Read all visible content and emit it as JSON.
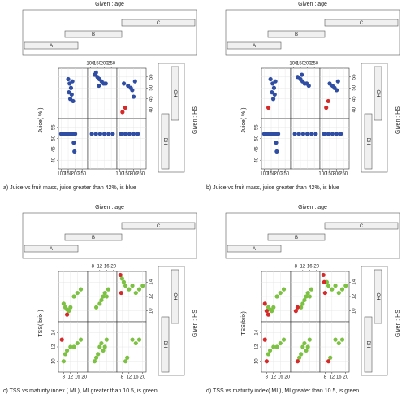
{
  "chart_data": [
    {
      "type": "coplot",
      "title": "a) Juice vs fruit mass, juice greater than 42%, is blue",
      "given_x": "Given : age",
      "given_y": "Given : HS",
      "x_levels": [
        "A",
        "B",
        "C"
      ],
      "y_levels": [
        "OH",
        "DH"
      ],
      "ylabel": "Juice( % )",
      "xlim": [
        80,
        290
      ],
      "ylim": [
        36,
        59
      ],
      "xticks": [
        100,
        150,
        200,
        250
      ],
      "yticks": [
        40,
        45,
        50,
        55
      ],
      "grid": true,
      "panels": [
        {
          "series": [
            {
              "color": "#2e4da3",
              "x": [
                150,
                160,
                170,
                155,
                175,
                165,
                180,
                185
              ],
              "values": [
                54,
                52,
                50,
                48,
                47,
                45,
                53,
                44
              ]
            }
          ]
        },
        {
          "series": [
            {
              "color": "#2e4da3",
              "x": [
                130,
                150,
                165,
                180,
                195,
                210,
                140,
                160
              ],
              "values": [
                56,
                55,
                54,
                53,
                52,
                52,
                57,
                51
              ]
            }
          ]
        },
        {
          "series": [
            {
              "color": "#2e4da3",
              "x": [
                130,
                160,
                180,
                190,
                200,
                210
              ],
              "values": [
                52,
                51,
                50,
                49,
                46,
                53
              ]
            },
            {
              "color": "#d62a2a",
              "x": [
                140,
                120
              ],
              "values": [
                41,
                39
              ]
            }
          ]
        },
        {
          "series": [
            {
              "color": "#2e4da3",
              "x": [
                100,
                120,
                140,
                160,
                180,
                200,
                190,
                195
              ],
              "values": [
                52,
                52,
                52,
                52,
                52,
                52,
                48,
                44
              ]
            }
          ]
        },
        {
          "series": [
            {
              "color": "#2e4da3",
              "x": [
                110,
                140,
                170,
                200,
                230,
                260
              ],
              "values": [
                52,
                52,
                52,
                52,
                52,
                52
              ]
            }
          ]
        },
        {
          "series": [
            {
              "color": "#2e4da3",
              "x": [
                110,
                140,
                170,
                200,
                230
              ],
              "values": [
                52,
                52,
                52,
                52,
                52
              ]
            }
          ]
        }
      ]
    },
    {
      "type": "coplot",
      "title": "b) Juice vs fruit mass, juice greater than 42%, is blue",
      "given_x": "Given : age",
      "given_y": "Given : HS",
      "x_levels": [
        "A",
        "B",
        "C"
      ],
      "y_levels": [
        "OH",
        "DH"
      ],
      "ylabel": "Juice( % )",
      "xlim": [
        80,
        290
      ],
      "ylim": [
        36,
        59
      ],
      "xticks": [
        100,
        150,
        200,
        250
      ],
      "yticks": [
        40,
        45,
        50,
        55
      ],
      "grid": true,
      "panels": [
        {
          "series": [
            {
              "color": "#2e4da3",
              "x": [
                145,
                160,
                170,
                155,
                175,
                165,
                180
              ],
              "values": [
                54,
                52,
                50,
                48,
                47,
                45,
                53
              ]
            },
            {
              "color": "#d62a2a",
              "x": [
                130
              ],
              "values": [
                41
              ]
            }
          ]
        },
        {
          "series": [
            {
              "color": "#2e4da3",
              "x": [
                130,
                150,
                165,
                180,
                195,
                210,
                160
              ],
              "values": [
                55,
                54,
                53,
                52,
                52,
                51,
                56
              ]
            }
          ]
        },
        {
          "series": [
            {
              "color": "#2e4da3",
              "x": [
                150,
                170,
                185,
                200,
                210
              ],
              "values": [
                52,
                51,
                50,
                49,
                53
              ]
            },
            {
              "color": "#d62a2a",
              "x": [
                140,
                125
              ],
              "values": [
                44,
                41
              ]
            }
          ]
        },
        {
          "series": [
            {
              "color": "#2e4da3",
              "x": [
                100,
                120,
                140,
                160,
                180,
                200,
                185,
                190
              ],
              "values": [
                52,
                52,
                52,
                52,
                52,
                52,
                48,
                44
              ]
            }
          ]
        },
        {
          "series": [
            {
              "color": "#2e4da3",
              "x": [
                110,
                140,
                170,
                200,
                230,
                260
              ],
              "values": [
                52,
                52,
                52,
                52,
                52,
                52
              ]
            }
          ]
        },
        {
          "series": [
            {
              "color": "#2e4da3",
              "x": [
                110,
                140,
                170,
                200,
                230
              ],
              "values": [
                52,
                52,
                52,
                52,
                52
              ]
            }
          ]
        }
      ]
    },
    {
      "type": "coplot",
      "title": "c) TSS vs maturity index ( MI ), MI greater than 10.5, is green",
      "given_x": "Given : age",
      "given_y": "Given : HS",
      "x_levels": [
        "A",
        "B",
        "C"
      ],
      "y_levels": [
        "OH",
        "DH"
      ],
      "ylabel": "TSS( brix )",
      "xlim": [
        5,
        22
      ],
      "ylim": [
        8.5,
        15.5
      ],
      "xticks": [
        8,
        12,
        16,
        20
      ],
      "yticks": [
        10,
        12,
        14
      ],
      "grid": true,
      "panels": [
        {
          "series": [
            {
              "color": "#7cc142",
              "x": [
                8,
                9,
                10,
                11,
                12,
                14,
                16,
                18
              ],
              "values": [
                11,
                10.5,
                10.2,
                10,
                10.5,
                12,
                12.5,
                13
              ]
            },
            {
              "color": "#d62a2a",
              "x": [
                10
              ],
              "values": [
                9.5
              ]
            }
          ]
        },
        {
          "series": [
            {
              "color": "#7cc142",
              "x": [
                10,
                12,
                13,
                14,
                15,
                16,
                17
              ],
              "values": [
                10.5,
                11,
                11.5,
                12,
                12.5,
                12,
                13
              ]
            }
          ]
        },
        {
          "series": [
            {
              "color": "#7cc142",
              "x": [
                8,
                9,
                10,
                12,
                14,
                16,
                18,
                20
              ],
              "values": [
                14.5,
                14,
                13.5,
                13,
                13.5,
                12.5,
                13,
                13.5
              ]
            },
            {
              "color": "#d62a2a",
              "x": [
                7,
                7.5
              ],
              "values": [
                15,
                12.5
              ]
            }
          ]
        },
        {
          "series": [
            {
              "color": "#7cc142",
              "x": [
                8,
                9,
                10,
                12,
                14,
                16,
                18
              ],
              "values": [
                10,
                11,
                11.5,
                12,
                12,
                12.5,
                13
              ]
            },
            {
              "color": "#d62a2a",
              "x": [
                7
              ],
              "values": [
                13
              ]
            }
          ]
        },
        {
          "series": [
            {
              "color": "#7cc142",
              "x": [
                9,
                10,
                11,
                12,
                13,
                14,
                15,
                16
              ],
              "values": [
                10,
                10.5,
                11,
                12,
                12.5,
                11.5,
                12,
                13
              ]
            }
          ]
        },
        {
          "series": [
            {
              "color": "#7cc142",
              "x": [
                10,
                11,
                14,
                16,
                18
              ],
              "values": [
                10,
                10.5,
                13,
                12.5,
                13
              ]
            }
          ]
        }
      ]
    },
    {
      "type": "coplot",
      "title": "d) TSS vs maturity index( MI ), MI greater than 10.5, is green",
      "given_x": "Given : age",
      "given_y": "Given : HS",
      "x_levels": [
        "A",
        "B",
        "C"
      ],
      "y_levels": [
        "OH",
        "DH"
      ],
      "ylabel": "TSS(brix)",
      "xlim": [
        5,
        22
      ],
      "ylim": [
        8.5,
        15.5
      ],
      "xticks": [
        8,
        12,
        16,
        20
      ],
      "yticks": [
        10,
        12,
        14
      ],
      "grid": true,
      "panels": [
        {
          "series": [
            {
              "color": "#7cc142",
              "x": [
                9,
                10,
                11,
                12,
                14,
                16,
                18
              ],
              "values": [
                10.5,
                10.2,
                10,
                10.5,
                12,
                12.5,
                13
              ]
            },
            {
              "color": "#d62a2a",
              "x": [
                7,
                8,
                9
              ],
              "values": [
                11,
                10,
                9.5
              ]
            }
          ]
        },
        {
          "series": [
            {
              "color": "#7cc142",
              "x": [
                11,
                12,
                13,
                14,
                15,
                16,
                17
              ],
              "values": [
                10.5,
                11,
                11.5,
                12,
                12.5,
                12,
                13
              ]
            },
            {
              "color": "#d62a2a",
              "x": [
                8,
                9
              ],
              "values": [
                10,
                10.5
              ]
            }
          ]
        },
        {
          "series": [
            {
              "color": "#7cc142",
              "x": [
                9,
                10,
                12,
                14,
                16,
                18,
                20
              ],
              "values": [
                14,
                13.5,
                13,
                13.5,
                12.5,
                13,
                13.5
              ]
            },
            {
              "color": "#d62a2a",
              "x": [
                7,
                7.5,
                8
              ],
              "values": [
                15,
                14,
                12.5
              ]
            }
          ]
        },
        {
          "series": [
            {
              "color": "#7cc142",
              "x": [
                9,
                10,
                12,
                14,
                16,
                18
              ],
              "values": [
                11,
                11.5,
                12,
                12,
                12.5,
                13
              ]
            },
            {
              "color": "#d62a2a",
              "x": [
                7,
                8
              ],
              "values": [
                13,
                10
              ]
            }
          ]
        },
        {
          "series": [
            {
              "color": "#7cc142",
              "x": [
                10,
                11,
                12,
                13,
                14,
                15,
                16
              ],
              "values": [
                10.5,
                11,
                12,
                12.5,
                11.5,
                12,
                13
              ]
            },
            {
              "color": "#d62a2a",
              "x": [
                9
              ],
              "values": [
                10
              ]
            }
          ]
        },
        {
          "series": [
            {
              "color": "#7cc142",
              "x": [
                11,
                14,
                16,
                18
              ],
              "values": [
                10.5,
                13,
                12.5,
                13
              ]
            },
            {
              "color": "#d62a2a",
              "x": [
                10
              ],
              "values": [
                10
              ]
            }
          ]
        }
      ]
    }
  ]
}
